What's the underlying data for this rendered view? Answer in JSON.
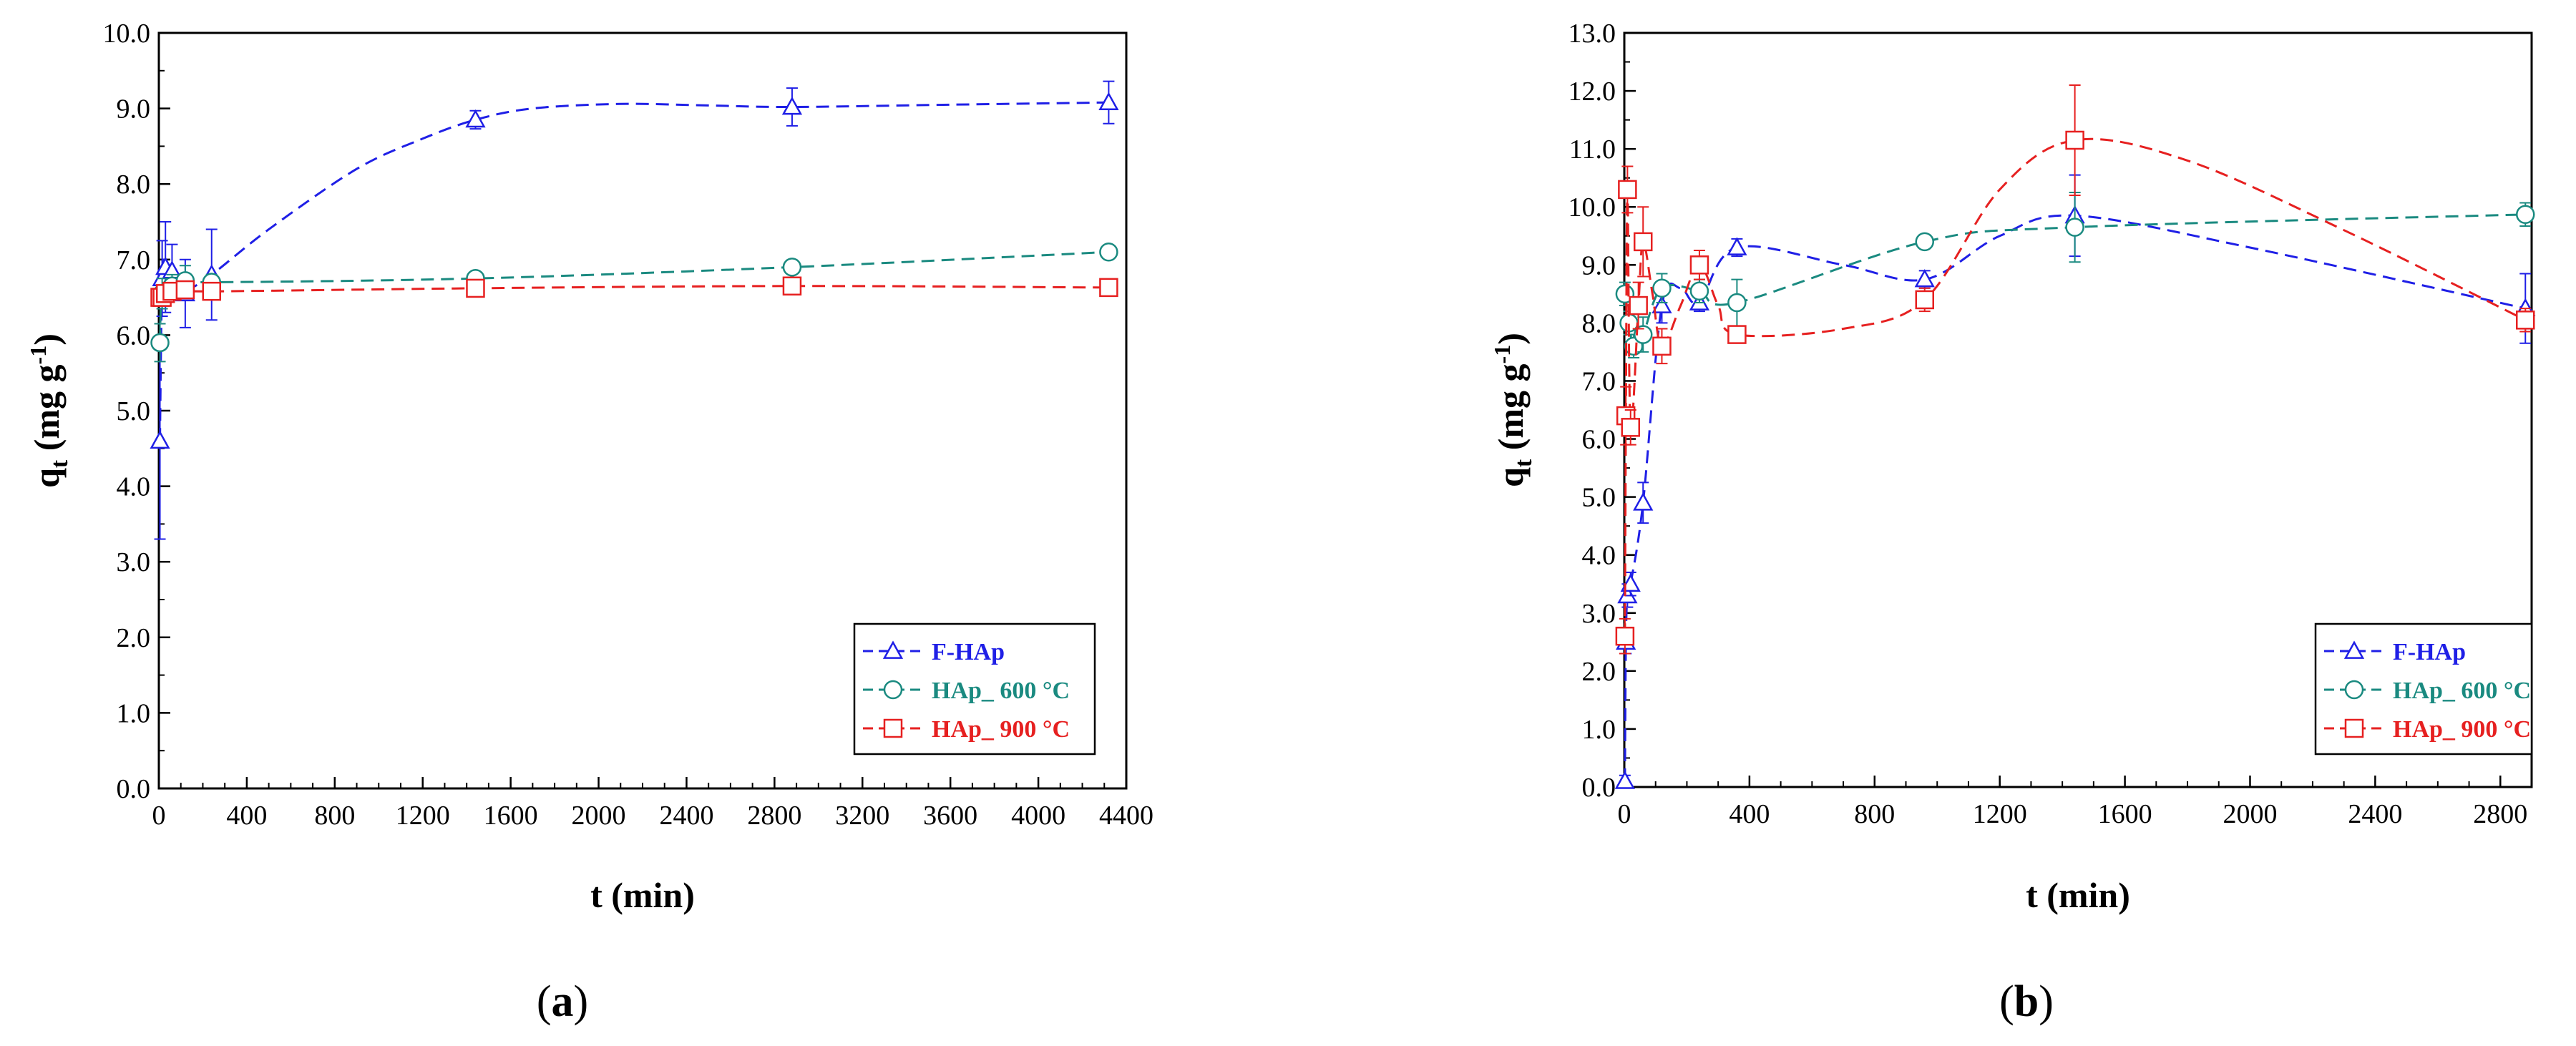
{
  "chart_data": [
    {
      "type": "line",
      "panel_label": "(a)",
      "title": "",
      "xlabel": "t (min)",
      "ylabel_main": "q",
      "ylabel_sub": "t",
      "ylabel_unit": "(mg g",
      "ylabel_exp": "-1",
      "ylabel_close": ")",
      "xlim": [
        0,
        4400
      ],
      "ylim": [
        0,
        10
      ],
      "xticks": [
        "0",
        "400",
        "800",
        "1200",
        "1600",
        "2000",
        "2400",
        "2800",
        "3200",
        "3600",
        "4000",
        "4400"
      ],
      "yticks": [
        "0.0",
        "1.0",
        "2.0",
        "3.0",
        "4.0",
        "5.0",
        "6.0",
        "7.0",
        "8.0",
        "9.0",
        "10.0"
      ],
      "legend_position": "bottom-right",
      "series": [
        {
          "name": "F-HAp",
          "color": "#1f1fe6",
          "marker": "triangle",
          "points": [
            [
              5,
              4.6,
              1.3
            ],
            [
              15,
              6.75,
              0.5
            ],
            [
              30,
              6.9,
              0.6
            ],
            [
              60,
              6.85,
              0.35
            ],
            [
              120,
              6.55,
              0.45
            ],
            [
              240,
              6.8,
              0.6
            ],
            [
              1440,
              8.85,
              0.12
            ],
            [
              2880,
              9.02,
              0.25
            ],
            [
              4320,
              9.08,
              0.28
            ]
          ],
          "curve": [
            [
              5,
              4.6
            ],
            [
              15,
              6.75
            ],
            [
              30,
              6.95
            ],
            [
              60,
              6.75
            ],
            [
              120,
              6.6
            ],
            [
              240,
              6.8
            ],
            [
              500,
              7.4
            ],
            [
              900,
              8.2
            ],
            [
              1200,
              8.6
            ],
            [
              1440,
              8.85
            ],
            [
              1700,
              9.0
            ],
            [
              2100,
              9.06
            ],
            [
              2500,
              9.04
            ],
            [
              2880,
              9.02
            ],
            [
              3600,
              9.05
            ],
            [
              4320,
              9.08
            ]
          ]
        },
        {
          "name": "HAp_ 600 °C",
          "color": "#1a8a80",
          "marker": "circle",
          "points": [
            [
              5,
              5.9,
              0.25
            ],
            [
              15,
              6.55,
              0.2
            ],
            [
              60,
              6.65,
              0.15
            ],
            [
              120,
              6.72,
              0.2
            ],
            [
              240,
              6.7,
              0.1
            ],
            [
              1440,
              6.75,
              0.05
            ],
            [
              2880,
              6.9,
              0.05
            ],
            [
              4320,
              7.1,
              0.05
            ]
          ],
          "curve": [
            [
              5,
              5.9
            ],
            [
              15,
              6.55
            ],
            [
              60,
              6.65
            ],
            [
              120,
              6.72
            ],
            [
              240,
              6.7
            ],
            [
              1440,
              6.75
            ],
            [
              2880,
              6.9
            ],
            [
              4320,
              7.1
            ]
          ]
        },
        {
          "name": "HAp_ 900 °C",
          "color": "#e62020",
          "marker": "square",
          "points": [
            [
              5,
              6.5,
              0.08
            ],
            [
              15,
              6.5,
              0.06
            ],
            [
              30,
              6.55,
              0.06
            ],
            [
              60,
              6.58,
              0.05
            ],
            [
              120,
              6.6,
              0.05
            ],
            [
              240,
              6.58,
              0.05
            ],
            [
              1440,
              6.62,
              0.05
            ],
            [
              2880,
              6.65,
              0.05
            ],
            [
              4320,
              6.63,
              0.05
            ]
          ],
          "curve": [
            [
              5,
              6.5
            ],
            [
              30,
              6.55
            ],
            [
              120,
              6.6
            ],
            [
              240,
              6.58
            ],
            [
              1440,
              6.62
            ],
            [
              2880,
              6.65
            ],
            [
              4320,
              6.63
            ]
          ]
        }
      ]
    },
    {
      "type": "line",
      "panel_label": "(b)",
      "title": "",
      "xlabel": "t (min)",
      "ylabel_main": "q",
      "ylabel_sub": "t",
      "ylabel_unit": "(mg g",
      "ylabel_exp": "-1",
      "ylabel_close": ")",
      "xlim": [
        0,
        2900
      ],
      "ylim": [
        0,
        13
      ],
      "xticks": [
        "0",
        "400",
        "800",
        "1200",
        "1600",
        "2000",
        "2400",
        "2800"
      ],
      "yticks": [
        "0.0",
        "1.0",
        "2.0",
        "3.0",
        "4.0",
        "5.0",
        "6.0",
        "7.0",
        "8.0",
        "9.0",
        "10.0",
        "11.0",
        "12.0",
        "13.0"
      ],
      "legend_position": "bottom-right",
      "series": [
        {
          "name": "F-HAp",
          "color": "#1f1fe6",
          "marker": "triangle",
          "points": [
            [
              2,
              0.1,
              0.1
            ],
            [
              5,
              2.5,
              0.2
            ],
            [
              10,
              3.3,
              0.2
            ],
            [
              20,
              3.5,
              0.2
            ],
            [
              60,
              4.9,
              0.35
            ],
            [
              120,
              8.3,
              0.3
            ],
            [
              240,
              8.35,
              0.15
            ],
            [
              360,
              9.3,
              0.15
            ],
            [
              960,
              8.75,
              0.15
            ],
            [
              1440,
              9.85,
              0.7
            ],
            [
              2880,
              8.25,
              0.6
            ]
          ],
          "curve": [
            [
              2,
              0.1
            ],
            [
              5,
              2.5
            ],
            [
              10,
              3.3
            ],
            [
              20,
              3.5
            ],
            [
              60,
              4.9
            ],
            [
              120,
              8.3
            ],
            [
              180,
              8.6
            ],
            [
              240,
              8.35
            ],
            [
              360,
              9.3
            ],
            [
              700,
              9.0
            ],
            [
              960,
              8.75
            ],
            [
              1200,
              9.5
            ],
            [
              1440,
              9.85
            ],
            [
              2000,
              9.3
            ],
            [
              2880,
              8.25
            ]
          ]
        },
        {
          "name": "HAp_ 600 °C",
          "color": "#1a8a80",
          "marker": "circle",
          "points": [
            [
              2,
              8.5,
              0.2
            ],
            [
              15,
              8.0,
              0.2
            ],
            [
              30,
              7.6,
              0.2
            ],
            [
              60,
              7.8,
              0.3
            ],
            [
              120,
              8.6,
              0.25
            ],
            [
              240,
              8.55,
              0.2
            ],
            [
              360,
              8.35,
              0.4
            ],
            [
              960,
              9.4,
              0.1
            ],
            [
              1440,
              9.65,
              0.6
            ],
            [
              2880,
              9.87,
              0.2
            ]
          ],
          "curve": [
            [
              2,
              8.5
            ],
            [
              15,
              8.0
            ],
            [
              30,
              7.6
            ],
            [
              60,
              7.8
            ],
            [
              120,
              8.6
            ],
            [
              240,
              8.55
            ],
            [
              360,
              8.35
            ],
            [
              960,
              9.4
            ],
            [
              1440,
              9.65
            ],
            [
              2880,
              9.87
            ]
          ]
        },
        {
          "name": "HAp_ 900 °C",
          "color": "#e62020",
          "marker": "square",
          "points": [
            [
              2,
              2.6,
              0.3
            ],
            [
              5,
              6.4,
              0.5
            ],
            [
              10,
              10.3,
              0.4
            ],
            [
              20,
              6.2,
              0.3
            ],
            [
              45,
              8.3,
              0.4
            ],
            [
              60,
              9.4,
              0.6
            ],
            [
              120,
              7.6,
              0.3
            ],
            [
              240,
              9.0,
              0.25
            ],
            [
              360,
              7.8,
              0.1
            ],
            [
              960,
              8.4,
              0.2
            ],
            [
              1440,
              11.15,
              0.95
            ],
            [
              2880,
              8.05,
              0.2
            ]
          ],
          "curve": [
            [
              2,
              2.6
            ],
            [
              5,
              6.4
            ],
            [
              10,
              10.3
            ],
            [
              20,
              6.2
            ],
            [
              45,
              8.3
            ],
            [
              60,
              9.4
            ],
            [
              90,
              8.5
            ],
            [
              120,
              7.6
            ],
            [
              180,
              8.3
            ],
            [
              240,
              9.0
            ],
            [
              300,
              8.3
            ],
            [
              360,
              7.8
            ],
            [
              700,
              7.9
            ],
            [
              960,
              8.4
            ],
            [
              1200,
              10.3
            ],
            [
              1440,
              11.15
            ],
            [
              1800,
              10.8
            ],
            [
              2300,
              9.6
            ],
            [
              2880,
              8.05
            ]
          ]
        }
      ]
    }
  ]
}
